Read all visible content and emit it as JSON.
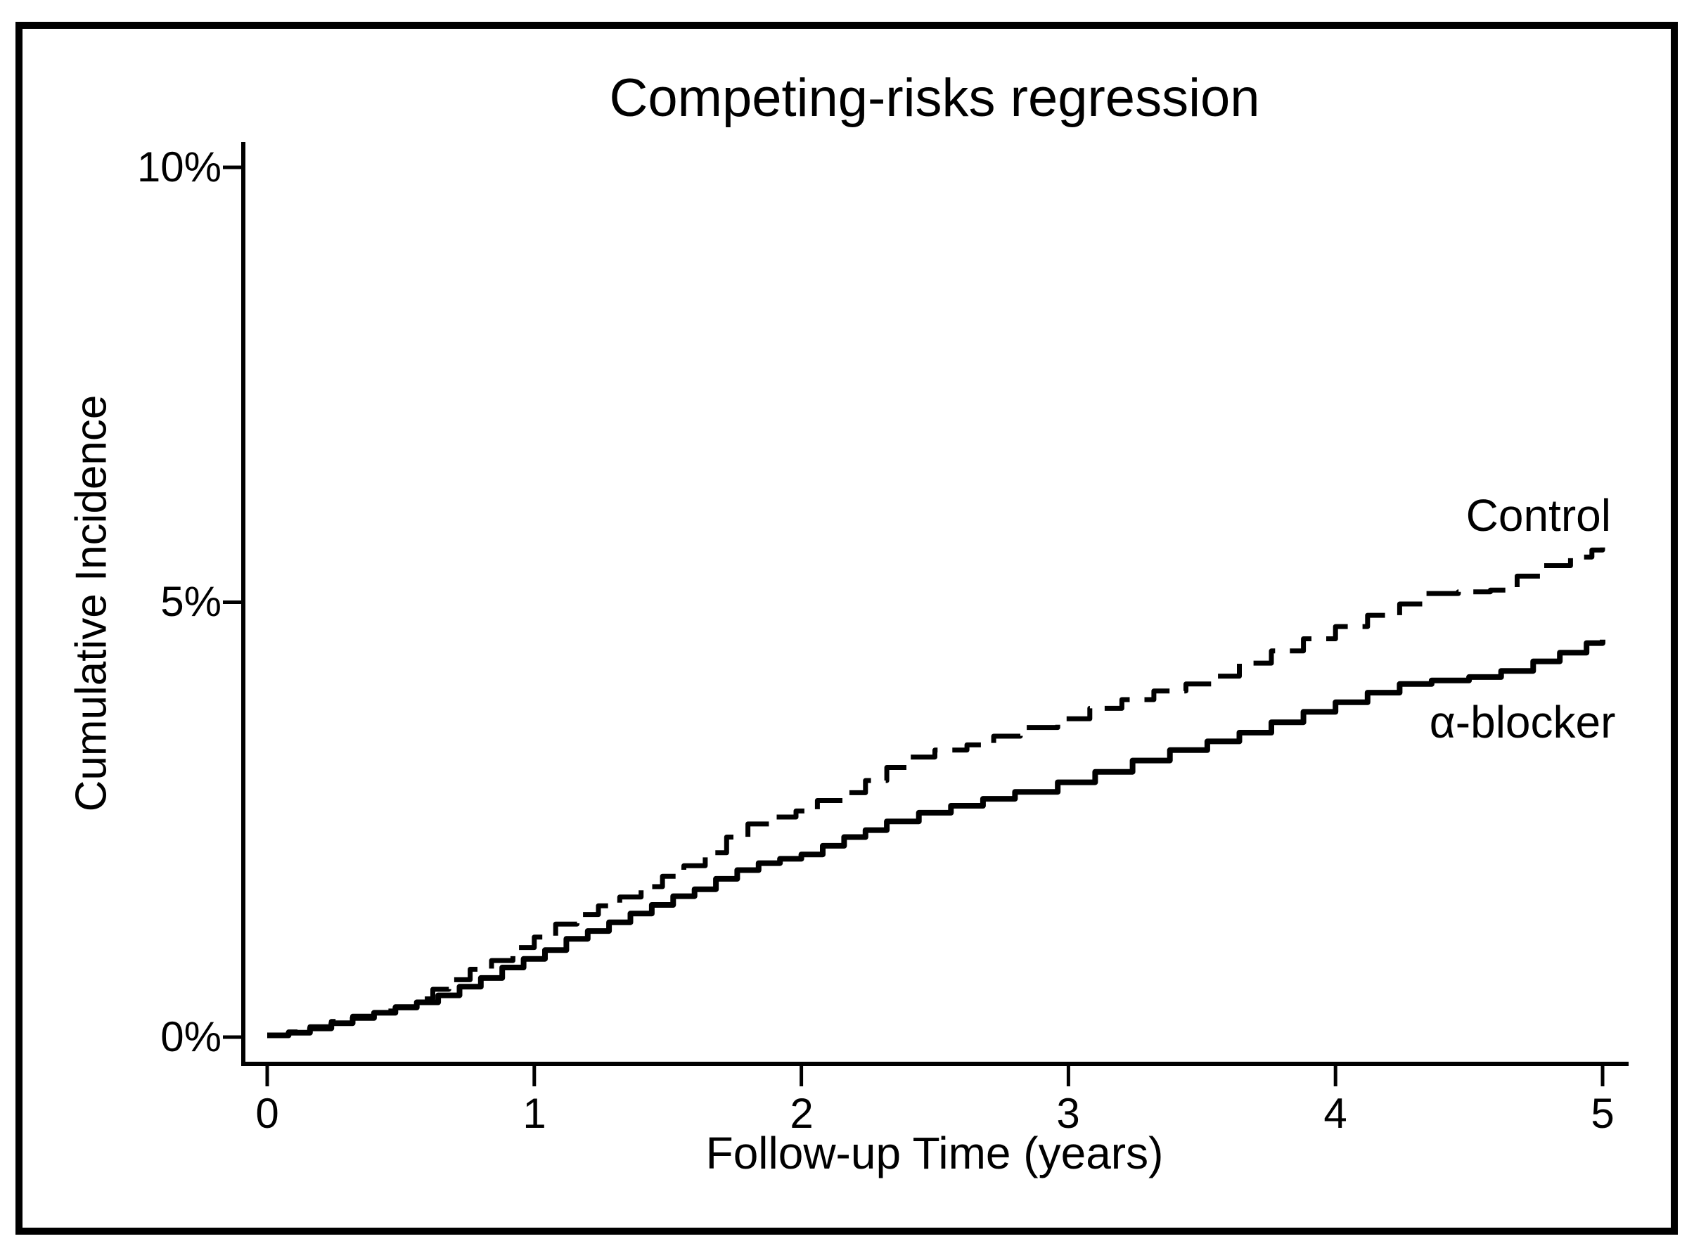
{
  "window": {
    "background_color": "#ffffff",
    "frame_border_color": "#000000",
    "line_color": "#000000"
  },
  "chart_data": {
    "type": "line",
    "title": "Competing-risks regression",
    "xlabel": "Follow-up Time (years)",
    "ylabel": "Cumulative Incidence",
    "xlim": [
      0,
      5
    ],
    "ylim_percent": [
      0,
      10
    ],
    "grid": false,
    "legend_position": "inline-labels-right",
    "x_ticks": [
      0,
      1,
      2,
      3,
      4,
      5
    ],
    "x_tick_labels": [
      "0",
      "1",
      "2",
      "3",
      "4",
      "5"
    ],
    "y_ticks_percent": [
      0,
      5,
      10
    ],
    "y_tick_labels": [
      "0%",
      "5%",
      "10%"
    ],
    "series": [
      {
        "name": "Control",
        "label": "Control",
        "line_style": "dashed",
        "color": "#000000",
        "label_pos": [
          4.76,
          6.0
        ],
        "points_t_years_v_percent": [
          [
            0.0,
            0.02
          ],
          [
            0.08,
            0.06
          ],
          [
            0.16,
            0.12
          ],
          [
            0.24,
            0.18
          ],
          [
            0.32,
            0.24
          ],
          [
            0.4,
            0.3
          ],
          [
            0.48,
            0.35
          ],
          [
            0.56,
            0.44
          ],
          [
            0.62,
            0.55
          ],
          [
            0.68,
            0.66
          ],
          [
            0.76,
            0.78
          ],
          [
            0.84,
            0.88
          ],
          [
            0.92,
            1.03
          ],
          [
            1.0,
            1.15
          ],
          [
            1.08,
            1.3
          ],
          [
            1.16,
            1.41
          ],
          [
            1.24,
            1.51
          ],
          [
            1.32,
            1.61
          ],
          [
            1.4,
            1.73
          ],
          [
            1.48,
            1.85
          ],
          [
            1.56,
            1.97
          ],
          [
            1.64,
            2.12
          ],
          [
            1.72,
            2.3
          ],
          [
            1.8,
            2.45
          ],
          [
            1.9,
            2.53
          ],
          [
            1.98,
            2.6
          ],
          [
            2.06,
            2.72
          ],
          [
            2.16,
            2.81
          ],
          [
            2.24,
            2.95
          ],
          [
            2.32,
            3.1
          ],
          [
            2.4,
            3.22
          ],
          [
            2.5,
            3.3
          ],
          [
            2.62,
            3.36
          ],
          [
            2.72,
            3.46
          ],
          [
            2.82,
            3.56
          ],
          [
            2.96,
            3.66
          ],
          [
            3.08,
            3.78
          ],
          [
            3.2,
            3.88
          ],
          [
            3.32,
            3.98
          ],
          [
            3.44,
            4.06
          ],
          [
            3.56,
            4.15
          ],
          [
            3.64,
            4.3
          ],
          [
            3.76,
            4.44
          ],
          [
            3.88,
            4.58
          ],
          [
            4.0,
            4.72
          ],
          [
            4.12,
            4.85
          ],
          [
            4.24,
            4.98
          ],
          [
            4.34,
            5.1
          ],
          [
            4.46,
            5.12
          ],
          [
            4.58,
            5.14
          ],
          [
            4.68,
            5.3
          ],
          [
            4.78,
            5.42
          ],
          [
            4.88,
            5.52
          ],
          [
            4.96,
            5.6
          ],
          [
            5.0,
            5.63
          ]
        ]
      },
      {
        "name": "α-blocker",
        "label": "α-blocker",
        "line_style": "solid",
        "color": "#000000",
        "label_pos": [
          4.7,
          3.62
        ],
        "points_t_years_v_percent": [
          [
            0.0,
            0.02
          ],
          [
            0.08,
            0.05
          ],
          [
            0.16,
            0.1
          ],
          [
            0.24,
            0.16
          ],
          [
            0.32,
            0.22
          ],
          [
            0.4,
            0.28
          ],
          [
            0.48,
            0.34
          ],
          [
            0.56,
            0.4
          ],
          [
            0.64,
            0.48
          ],
          [
            0.72,
            0.58
          ],
          [
            0.8,
            0.68
          ],
          [
            0.88,
            0.8
          ],
          [
            0.96,
            0.9
          ],
          [
            1.04,
            1.0
          ],
          [
            1.12,
            1.13
          ],
          [
            1.2,
            1.22
          ],
          [
            1.28,
            1.32
          ],
          [
            1.36,
            1.42
          ],
          [
            1.44,
            1.52
          ],
          [
            1.52,
            1.62
          ],
          [
            1.6,
            1.7
          ],
          [
            1.68,
            1.82
          ],
          [
            1.76,
            1.92
          ],
          [
            1.84,
            2.0
          ],
          [
            1.92,
            2.05
          ],
          [
            2.0,
            2.1
          ],
          [
            2.08,
            2.2
          ],
          [
            2.16,
            2.3
          ],
          [
            2.24,
            2.38
          ],
          [
            2.32,
            2.48
          ],
          [
            2.44,
            2.58
          ],
          [
            2.56,
            2.66
          ],
          [
            2.68,
            2.74
          ],
          [
            2.8,
            2.82
          ],
          [
            2.96,
            2.93
          ],
          [
            3.1,
            3.05
          ],
          [
            3.24,
            3.18
          ],
          [
            3.38,
            3.3
          ],
          [
            3.52,
            3.4
          ],
          [
            3.64,
            3.5
          ],
          [
            3.76,
            3.62
          ],
          [
            3.88,
            3.74
          ],
          [
            4.0,
            3.85
          ],
          [
            4.12,
            3.96
          ],
          [
            4.24,
            4.06
          ],
          [
            4.36,
            4.1
          ],
          [
            4.5,
            4.14
          ],
          [
            4.62,
            4.21
          ],
          [
            4.74,
            4.32
          ],
          [
            4.84,
            4.42
          ],
          [
            4.94,
            4.53
          ],
          [
            5.0,
            4.57
          ]
        ]
      }
    ]
  }
}
